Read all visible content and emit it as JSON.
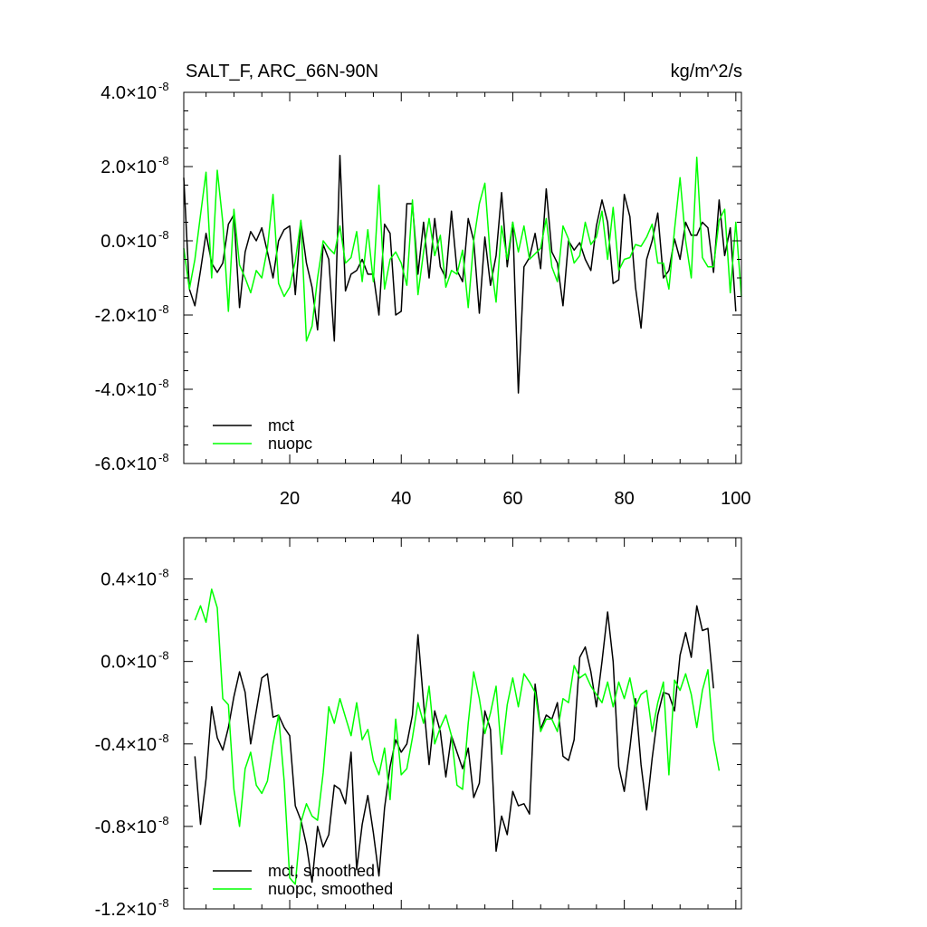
{
  "chart_data": [
    {
      "type": "line",
      "title": "SALT_F, ARC_66N-90N",
      "units": "kg/m^2/s",
      "xlim": [
        1,
        101
      ],
      "ylim": [
        -6.0,
        4.0
      ],
      "y_scale_exponent": -8,
      "x_ticks": [
        "20",
        "40",
        "60",
        "80",
        "100"
      ],
      "y_ticks": [
        {
          "value": 4.0,
          "mantissa": "4.0",
          "times": "×10",
          "exp": "-8"
        },
        {
          "value": 2.0,
          "mantissa": "2.0",
          "times": "×10",
          "exp": "-8"
        },
        {
          "value": 0.0,
          "mantissa": "0.0",
          "times": "×10",
          "exp": "-8"
        },
        {
          "value": -2.0,
          "mantissa": "-2.0",
          "times": "×10",
          "exp": "-8"
        },
        {
          "value": -4.0,
          "mantissa": "-4.0",
          "times": "×10",
          "exp": "-8"
        },
        {
          "value": -6.0,
          "mantissa": "-6.0",
          "times": "×10",
          "exp": "-8"
        }
      ],
      "legend_position": "bottom-left",
      "series": [
        {
          "name": "mct",
          "color": "#000000",
          "x_start": 1,
          "values": [
            1.7,
            -1.3,
            -1.75,
            -0.8,
            0.2,
            -0.6,
            -0.85,
            -0.6,
            0.45,
            0.7,
            -1.8,
            -0.3,
            0.25,
            0.0,
            0.35,
            -0.3,
            -1.0,
            0.0,
            0.3,
            0.4,
            -1.45,
            0.5,
            -0.6,
            -1.25,
            -2.4,
            -0.1,
            -0.5,
            -2.7,
            2.3,
            -1.35,
            -0.9,
            -0.8,
            -0.5,
            -0.9,
            -0.9,
            -2.0,
            0.45,
            0.2,
            -2.0,
            -1.9,
            1.0,
            1.0,
            -0.9,
            0.5,
            -1.0,
            0.6,
            -0.7,
            -1.0,
            0.8,
            -0.8,
            -1.1,
            0.6,
            0.0,
            -1.95,
            0.1,
            -1.2,
            -0.4,
            1.3,
            -0.7,
            0.5,
            -4.1,
            -0.7,
            -0.45,
            0.2,
            -0.75,
            1.4,
            -0.3,
            -0.6,
            -1.75,
            0.0,
            -0.25,
            -0.05,
            -0.5,
            -0.8,
            0.4,
            1.1,
            0.5,
            -1.15,
            -1.05,
            1.25,
            0.65,
            -1.25,
            -2.35,
            -0.5,
            0.0,
            0.75,
            -1.0,
            -0.8,
            0.05,
            -0.5,
            0.5,
            0.15,
            0.15,
            0.5,
            0.35,
            -0.85,
            1.1,
            -0.4,
            0.35,
            -1.9
          ]
        },
        {
          "name": "nuopc",
          "color": "#00ff00",
          "x_start": 1,
          "values": [
            -0.2,
            -1.3,
            -0.5,
            0.7,
            1.85,
            -1.0,
            1.9,
            0.5,
            -1.9,
            0.85,
            -0.65,
            -1.0,
            -1.4,
            -0.8,
            -1.0,
            -0.2,
            1.25,
            -1.15,
            -1.5,
            -1.25,
            -0.55,
            0.55,
            -2.7,
            -2.3,
            -1.0,
            0.0,
            -0.2,
            -0.35,
            0.4,
            -0.6,
            -0.45,
            0.25,
            -1.1,
            0.3,
            -1.1,
            1.5,
            -1.3,
            -0.5,
            -0.3,
            -0.6,
            -1.2,
            1.1,
            -1.45,
            -0.3,
            0.6,
            -0.4,
            0.15,
            -1.25,
            -0.8,
            -0.9,
            -0.25,
            -1.8,
            0.0,
            1.0,
            1.55,
            -0.5,
            -1.65,
            0.4,
            -0.5,
            0.5,
            -0.3,
            0.4,
            -0.5,
            -0.35,
            -0.2,
            0.6,
            -0.7,
            -1.1,
            0.4,
            0.05,
            -0.6,
            -0.4,
            0.5,
            -0.1,
            0.1,
            0.8,
            -0.5,
            0.9,
            -0.8,
            -0.5,
            -0.45,
            -0.1,
            -0.15,
            0.1,
            0.45,
            -0.6,
            -0.6,
            -1.3,
            0.3,
            1.7,
            0.0,
            -1.0,
            2.25,
            -0.45,
            -0.7,
            -0.7,
            0.55,
            0.85,
            -1.4,
            0.5,
            -1.5
          ]
        }
      ]
    },
    {
      "type": "line",
      "title": "",
      "xlim": [
        1,
        101
      ],
      "ylim": [
        -1.2,
        0.6
      ],
      "y_scale_exponent": -8,
      "x_ticks": [],
      "y_ticks": [
        {
          "value": 0.4,
          "mantissa": "0.4",
          "times": "×10",
          "exp": "-8"
        },
        {
          "value": 0.0,
          "mantissa": "0.0",
          "times": "×10",
          "exp": "-8"
        },
        {
          "value": -0.4,
          "mantissa": "-0.4",
          "times": "×10",
          "exp": "-8"
        },
        {
          "value": -0.8,
          "mantissa": "-0.8",
          "times": "×10",
          "exp": "-8"
        },
        {
          "value": -1.2,
          "mantissa": "-1.2",
          "times": "×10",
          "exp": "-8"
        }
      ],
      "legend_position": "bottom-left",
      "series": [
        {
          "name": "mct, smoothed",
          "color": "#000000",
          "x_start": 3,
          "values": [
            -0.46,
            -0.79,
            -0.57,
            -0.22,
            -0.37,
            -0.43,
            -0.32,
            -0.17,
            -0.05,
            -0.15,
            -0.4,
            -0.24,
            -0.08,
            -0.06,
            -0.27,
            -0.26,
            -0.32,
            -0.36,
            -0.7,
            -0.77,
            -0.89,
            -1.07,
            -0.8,
            -0.9,
            -0.84,
            -0.6,
            -0.62,
            -0.69,
            -0.44,
            -1.01,
            -0.79,
            -0.65,
            -0.83,
            -1.04,
            -0.71,
            -0.51,
            -0.38,
            -0.44,
            -0.4,
            -0.26,
            0.13,
            -0.2,
            -0.5,
            -0.24,
            -0.34,
            -0.56,
            -0.36,
            -0.44,
            -0.52,
            -0.42,
            -0.66,
            -0.59,
            -0.24,
            -0.33,
            -0.92,
            -0.75,
            -0.84,
            -0.63,
            -0.7,
            -0.69,
            -0.74,
            -0.11,
            -0.33,
            -0.26,
            -0.28,
            -0.2,
            -0.46,
            -0.48,
            -0.38,
            0.02,
            0.07,
            -0.05,
            -0.22,
            0.0,
            0.24,
            0.0,
            -0.51,
            -0.63,
            -0.42,
            -0.18,
            -0.5,
            -0.72,
            -0.47,
            -0.26,
            -0.15,
            -0.16,
            -0.24,
            0.03,
            0.14,
            0.02,
            0.27,
            0.15,
            0.16,
            -0.13
          ]
        },
        {
          "name": "nuopc, smoothed",
          "color": "#00ff00",
          "x_start": 3,
          "values": [
            0.2,
            0.27,
            0.19,
            0.35,
            0.26,
            -0.18,
            -0.21,
            -0.62,
            -0.8,
            -0.52,
            -0.44,
            -0.6,
            -0.64,
            -0.58,
            -0.4,
            -0.26,
            -0.58,
            -1.05,
            -1.08,
            -0.78,
            -0.69,
            -0.75,
            -0.77,
            -0.54,
            -0.22,
            -0.3,
            -0.18,
            -0.27,
            -0.36,
            -0.2,
            -0.38,
            -0.33,
            -0.48,
            -0.55,
            -0.42,
            -0.67,
            -0.28,
            -0.55,
            -0.52,
            -0.37,
            -0.2,
            -0.3,
            -0.12,
            -0.4,
            -0.32,
            -0.26,
            -0.36,
            -0.6,
            -0.62,
            -0.3,
            -0.05,
            -0.18,
            -0.35,
            -0.25,
            -0.12,
            -0.45,
            -0.21,
            -0.08,
            -0.22,
            -0.06,
            -0.1,
            -0.15,
            -0.34,
            -0.28,
            -0.28,
            -0.34,
            -0.18,
            -0.2,
            -0.02,
            -0.08,
            -0.06,
            -0.12,
            -0.16,
            -0.2,
            -0.1,
            -0.22,
            -0.1,
            -0.18,
            -0.08,
            -0.22,
            -0.16,
            -0.14,
            -0.34,
            -0.2,
            -0.1,
            -0.55,
            -0.09,
            -0.14,
            -0.06,
            -0.16,
            -0.32,
            -0.14,
            -0.04,
            -0.38,
            -0.53
          ]
        }
      ]
    }
  ]
}
